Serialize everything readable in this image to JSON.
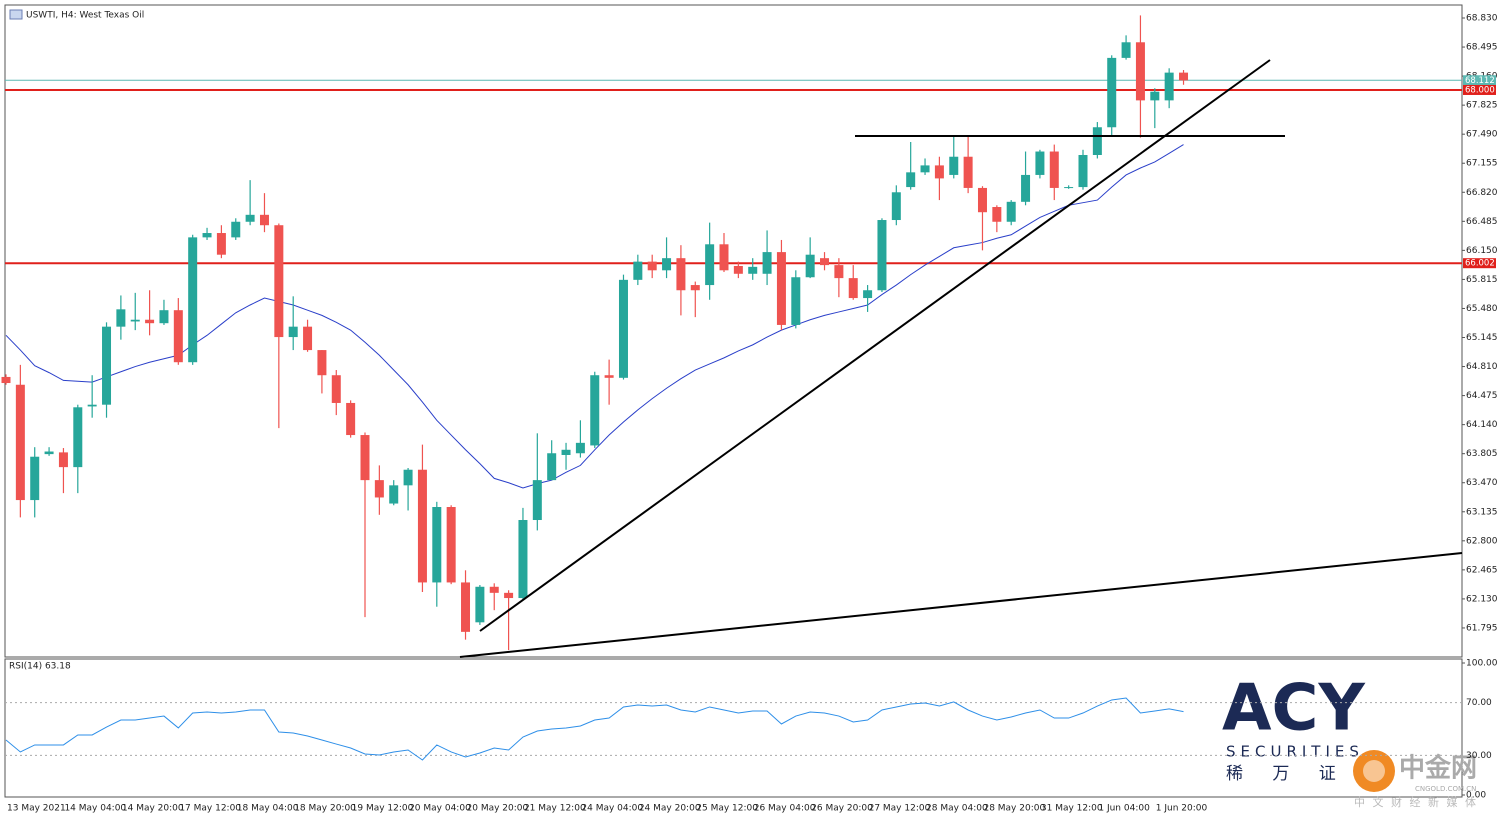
{
  "chart_data": [
    {
      "type": "candlestick",
      "title": "USWTI, H4:  West Texas Oil",
      "categories": [
        "13 May 2021",
        null,
        null,
        null,
        "14 May 04:00",
        null,
        null,
        null,
        "14 May 20:00",
        null,
        null,
        null,
        "17 May 12:00",
        null,
        null,
        null,
        "18 May 04:00",
        null,
        null,
        null,
        "18 May 20:00",
        null,
        null,
        null,
        "19 May 12:00",
        null,
        null,
        null,
        "20 May 04:00",
        null,
        null,
        null,
        "20 May 20:00",
        null,
        null,
        null,
        "21 May 12:00",
        null,
        null,
        null,
        "24 May 04:00",
        null,
        null,
        null,
        "24 May 20:00",
        null,
        null,
        null,
        "25 May 12:00",
        null,
        null,
        null,
        "26 May 04:00",
        null,
        null,
        null,
        "26 May 20:00",
        null,
        null,
        null,
        "27 May 12:00",
        null,
        null,
        null,
        "28 May 04:00",
        null,
        null,
        null,
        "28 May 20:00",
        null,
        null,
        null,
        "31 May 12:00",
        null,
        null,
        null,
        "1 Jun 04:00",
        null,
        null,
        null,
        "1 Jun 20:00",
        null,
        null
      ],
      "open": [
        64.69,
        64.6,
        63.27,
        63.8,
        63.82,
        63.65,
        64.35,
        64.37,
        65.27,
        65.33,
        65.35,
        65.31,
        65.46,
        64.86,
        66.3,
        66.35,
        66.3,
        66.48,
        66.56,
        66.44,
        65.15,
        65.27,
        65.0,
        64.71,
        64.39,
        64.02,
        63.5,
        63.23,
        63.44,
        63.62,
        62.32,
        63.19,
        62.32,
        61.86,
        62.27,
        62.2,
        62.14,
        63.04,
        63.5,
        63.79,
        63.81,
        63.9,
        64.71,
        64.68,
        65.81,
        66.02,
        65.92,
        66.06,
        65.75,
        65.75,
        66.22,
        65.97,
        65.88,
        65.88,
        66.13,
        65.29,
        65.84,
        66.06,
        65.98,
        65.83,
        65.6,
        65.69,
        66.5,
        66.88,
        67.05,
        67.13,
        67.02,
        67.23,
        66.87,
        66.65,
        66.48,
        66.71,
        67.02,
        67.29,
        66.88,
        66.88,
        67.25,
        67.57,
        68.37,
        68.55,
        67.88,
        67.88,
        68.2
      ],
      "high": [
        64.72,
        64.83,
        63.88,
        63.88,
        63.87,
        64.37,
        64.71,
        65.32,
        65.63,
        65.66,
        65.69,
        65.58,
        65.6,
        66.33,
        66.41,
        66.44,
        66.52,
        66.96,
        66.81,
        66.46,
        65.62,
        65.35,
        65.0,
        64.77,
        64.42,
        64.05,
        63.67,
        63.5,
        63.64,
        63.91,
        63.25,
        63.21,
        62.46,
        62.29,
        62.31,
        62.23,
        63.18,
        64.04,
        63.96,
        63.93,
        64.19,
        64.75,
        64.89,
        65.87,
        66.1,
        66.1,
        66.3,
        66.21,
        65.79,
        66.47,
        66.35,
        66.02,
        66.06,
        66.38,
        66.27,
        65.92,
        66.3,
        66.13,
        66.06,
        65.98,
        65.75,
        66.52,
        66.9,
        67.4,
        67.21,
        67.23,
        67.46,
        67.48,
        66.89,
        66.67,
        66.73,
        67.29,
        67.31,
        67.37,
        66.9,
        67.31,
        67.63,
        68.4,
        68.63,
        68.86,
        68.02,
        68.25,
        68.23
      ],
      "low": [
        64.6,
        63.07,
        63.07,
        63.78,
        63.35,
        63.35,
        64.22,
        64.22,
        65.12,
        65.23,
        65.17,
        65.29,
        64.83,
        64.83,
        66.27,
        66.06,
        66.27,
        66.44,
        66.36,
        64.1,
        65.0,
        64.98,
        64.5,
        64.25,
        63.99,
        61.92,
        63.1,
        63.21,
        63.15,
        62.21,
        62.04,
        62.3,
        61.66,
        61.83,
        62.0,
        61.54,
        62.12,
        62.92,
        63.5,
        63.62,
        63.76,
        63.87,
        64.37,
        64.66,
        65.75,
        65.83,
        65.83,
        65.4,
        65.38,
        65.58,
        65.9,
        65.83,
        65.81,
        65.75,
        65.23,
        65.25,
        65.83,
        65.92,
        65.61,
        65.58,
        65.44,
        65.67,
        66.44,
        66.85,
        67.02,
        66.73,
        66.98,
        66.81,
        66.15,
        66.36,
        66.44,
        66.67,
        66.98,
        66.73,
        66.86,
        66.85,
        67.21,
        67.48,
        68.35,
        67.45,
        67.56,
        67.79,
        68.06
      ],
      "close": [
        64.62,
        63.27,
        63.77,
        63.83,
        63.65,
        64.34,
        64.37,
        65.27,
        65.47,
        65.35,
        65.31,
        65.46,
        64.86,
        66.3,
        66.35,
        66.1,
        66.48,
        66.56,
        66.44,
        65.15,
        65.27,
        65.0,
        64.71,
        64.39,
        64.02,
        63.5,
        63.3,
        63.44,
        63.62,
        62.32,
        63.19,
        62.32,
        61.75,
        62.27,
        62.2,
        62.14,
        63.04,
        63.5,
        63.81,
        63.85,
        63.93,
        64.71,
        64.68,
        65.81,
        66.02,
        65.92,
        66.06,
        65.69,
        65.69,
        66.22,
        65.92,
        65.88,
        65.96,
        66.13,
        65.29,
        65.84,
        66.1,
        65.98,
        65.83,
        65.6,
        65.69,
        66.5,
        66.82,
        67.05,
        67.13,
        66.98,
        67.23,
        66.87,
        66.59,
        66.48,
        66.71,
        67.02,
        67.29,
        66.87,
        66.88,
        67.25,
        67.57,
        68.37,
        68.55,
        67.88,
        67.98,
        68.2,
        68.11
      ],
      "up_color": "#26a69a",
      "down_color": "#ef5350",
      "ma": {
        "color": "#2a3fc9",
        "values": [
          65.17,
          65.0,
          64.82,
          64.74,
          64.65,
          64.64,
          64.63,
          64.69,
          64.75,
          64.81,
          64.86,
          64.9,
          64.94,
          65.06,
          65.17,
          65.3,
          65.43,
          65.52,
          65.6,
          65.56,
          65.52,
          65.46,
          65.4,
          65.32,
          65.23,
          65.09,
          64.94,
          64.77,
          64.6,
          64.4,
          64.19,
          64.02,
          63.85,
          63.69,
          63.52,
          63.47,
          63.41,
          63.46,
          63.5,
          63.59,
          63.67,
          63.85,
          64.02,
          64.17,
          64.31,
          64.44,
          64.56,
          64.67,
          64.77,
          64.84,
          64.91,
          64.99,
          65.06,
          65.15,
          65.23,
          65.29,
          65.35,
          65.4,
          65.44,
          65.48,
          65.52,
          65.64,
          65.75,
          65.87,
          65.98,
          66.08,
          66.18,
          66.21,
          66.24,
          66.29,
          66.33,
          66.43,
          66.53,
          66.6,
          66.67,
          66.7,
          66.73,
          66.88,
          67.02,
          67.1,
          67.17,
          67.27,
          67.37
        ]
      },
      "levels": [
        {
          "value": 68.112,
          "color": "#5cb8b2"
        },
        {
          "value": 68,
          "label": "68.000",
          "color": "#e0201b"
        },
        {
          "value": 66.002,
          "color": "#e0201b"
        }
      ],
      "ylim": [
        61.46,
        68.98
      ],
      "yticks": [
        {
          "value": 68.83,
          "label": "68.830"
        },
        68.495,
        {
          "value": 68.16,
          "label": "68.160"
        },
        67.825,
        {
          "value": 67.49,
          "label": "67.490"
        },
        67.155,
        {
          "value": 66.82,
          "label": "66.820"
        },
        66.485,
        {
          "value": 66.15,
          "label": "66.150"
        },
        65.815,
        {
          "value": 65.48,
          "label": "65.480"
        },
        65.145,
        {
          "value": 64.81,
          "label": "64.810"
        },
        64.475,
        {
          "value": 64.14,
          "label": "64.140"
        },
        63.805,
        {
          "value": 63.47,
          "label": "63.470"
        },
        63.135,
        {
          "value": 62.8,
          "label": "62.800"
        },
        62.465,
        {
          "value": 62.13,
          "label": "62.130"
        },
        61.795
      ]
    },
    {
      "type": "line",
      "title": "RSI(14) 63.18",
      "color": "#2e8fe8",
      "values": [
        41.7,
        32.6,
        37.9,
        37.9,
        37.9,
        45.5,
        45.5,
        51.5,
        56.8,
        56.8,
        58.3,
        59.8,
        50.8,
        62.1,
        62.9,
        62.1,
        62.9,
        64.4,
        64.4,
        47.7,
        47.0,
        44.7,
        41.7,
        38.6,
        35.6,
        31.1,
        30.3,
        32.6,
        34.1,
        26.5,
        37.9,
        32.6,
        28.8,
        31.8,
        35.6,
        34.1,
        43.9,
        48.5,
        50.0,
        50.8,
        52.3,
        56.8,
        58.3,
        66.7,
        68.2,
        67.4,
        68.2,
        64.4,
        62.9,
        66.7,
        64.4,
        62.1,
        63.6,
        63.6,
        53.8,
        59.8,
        62.9,
        62.1,
        59.8,
        55.3,
        56.8,
        64.4,
        66.7,
        68.9,
        69.7,
        67.4,
        70.5,
        64.4,
        59.8,
        56.8,
        59.1,
        62.1,
        64.4,
        58.3,
        58.3,
        62.1,
        67.4,
        72.0,
        73.5,
        62.1,
        63.6,
        65.2,
        63.2
      ],
      "ylim": [
        0,
        100
      ],
      "yticks": [
        {
          "value": 100,
          "label": "100.00"
        },
        {
          "value": 70,
          "label": "70.00"
        },
        {
          "value": 30,
          "label": "30.00"
        },
        {
          "value": 0,
          "label": "0.00"
        }
      ]
    }
  ],
  "branding": {
    "logo": "ACY",
    "tagline": "SECURITIES",
    "chinese": "稀 万 证",
    "watermark": "中金网",
    "watermark_site": "CNGOLD.COM.CN",
    "watermark_slogan": "中 文 财 经 新 媒 体"
  }
}
